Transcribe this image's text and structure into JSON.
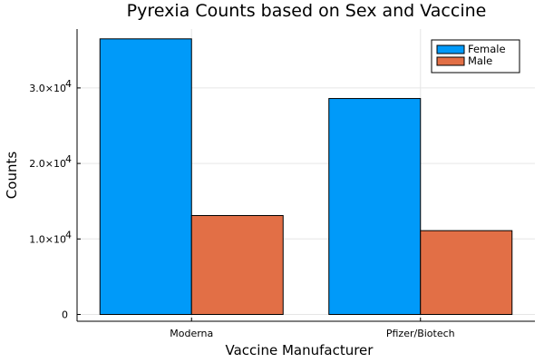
{
  "chart_data": {
    "type": "bar",
    "title": "Pyrexia Counts based on Sex and Vaccine",
    "xlabel": "Vaccine Manufacturer",
    "ylabel": "Counts",
    "categories": [
      "Moderna",
      "Pfizer/Biotech"
    ],
    "series": [
      {
        "name": "Female",
        "values": [
          36500,
          28600
        ],
        "color": "#009af9"
      },
      {
        "name": "Male",
        "values": [
          13100,
          11100
        ],
        "color": "#e26f46"
      }
    ],
    "ylim": [
      -900,
      37800
    ],
    "yticks": [
      0,
      10000,
      20000,
      30000
    ],
    "ytick_labels": [
      {
        "mantissa": "0",
        "exponent": ""
      },
      {
        "mantissa": "1.0×10",
        "exponent": "4"
      },
      {
        "mantissa": "2.0×10",
        "exponent": "4"
      },
      {
        "mantissa": "3.0×10",
        "exponent": "4"
      }
    ],
    "grid": true,
    "legend": "top-right"
  }
}
